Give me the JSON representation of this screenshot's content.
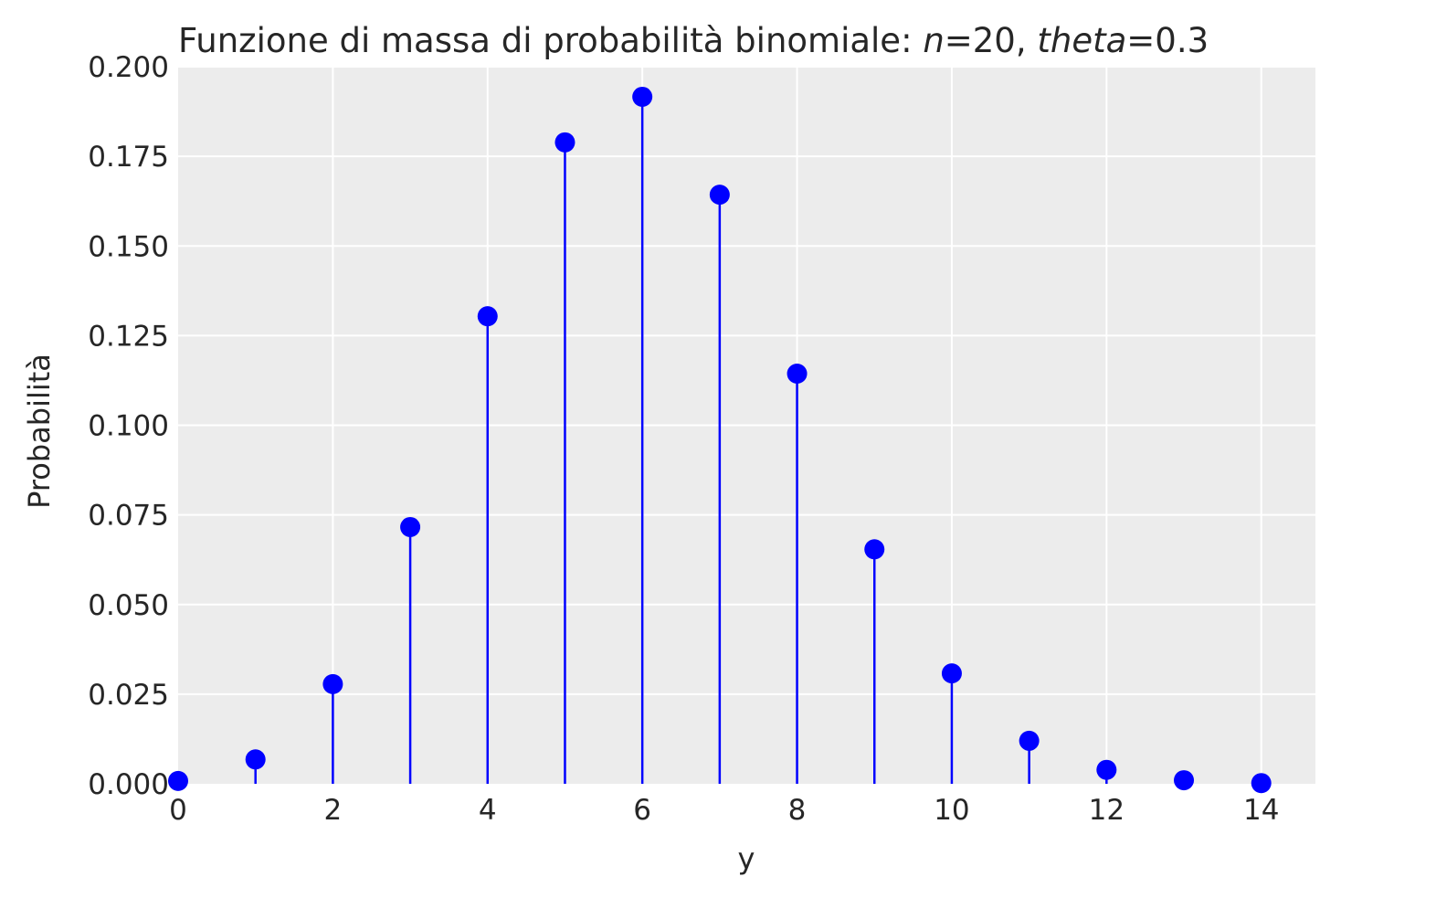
{
  "chart_data": {
    "type": "stem",
    "title": {
      "prefix": "Funzione di massa di probabilità binomiale: ",
      "n_symbol": "n",
      "n_value": "=20, ",
      "theta_symbol": "theta",
      "theta_value": "=0.3"
    },
    "xlabel": "y",
    "ylabel": "Probabilità",
    "xlim": [
      0,
      14.7
    ],
    "ylim": [
      0,
      0.2
    ],
    "x_ticks": [
      0,
      2,
      4,
      6,
      8,
      10,
      12,
      14
    ],
    "y_ticks": [
      "0.000",
      "0.025",
      "0.050",
      "0.075",
      "0.100",
      "0.125",
      "0.150",
      "0.175",
      "0.200"
    ],
    "grid": true,
    "x": [
      0,
      1,
      2,
      3,
      4,
      5,
      6,
      7,
      8,
      9,
      10,
      11,
      12,
      13,
      14
    ],
    "values": [
      0.0008,
      0.0068,
      0.0278,
      0.0716,
      0.1304,
      0.1789,
      0.1916,
      0.1643,
      0.1144,
      0.0654,
      0.0308,
      0.012,
      0.0039,
      0.001,
      0.0002
    ],
    "color": "#0000ff",
    "background": "#ececec"
  }
}
